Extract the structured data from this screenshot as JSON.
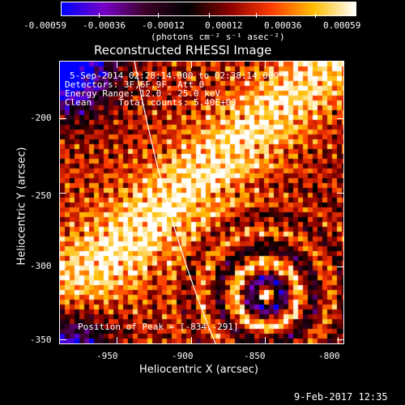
{
  "colorbar": {
    "tick_labels": [
      "-0.00059",
      "-0.00036",
      "-0.00012",
      "0.00012",
      "0.00036",
      "0.00059"
    ],
    "units": "(photons cm⁻² s⁻¹ asec⁻²)",
    "range": [
      -0.00059,
      0.00059
    ]
  },
  "plot": {
    "title": "Reconstructed RHESSI Image",
    "info": {
      "time": "5-Sep-2014 02:28:14.000 to 02:38:14.000",
      "detectors": "Detectors: 3F,6F,9F, Att 0",
      "energy": "Energy Range: 12.0 - 25.0 keV",
      "clean": "Clean     Total counts: 5.40E+03"
    },
    "peak": "Position of Peak = [-834,-291]",
    "xlabel": "Heliocentric X (arcsec)",
    "ylabel": "Heliocentric Y (arcsec)",
    "x_ticks": [
      "-950",
      "-900",
      "-850",
      "-800"
    ],
    "y_ticks": [
      "-200",
      "-250",
      "-300",
      "-350"
    ],
    "xlim": [
      -985,
      -790
    ],
    "ylim": [
      -355,
      -164
    ]
  },
  "footer": {
    "date": "9-Feb-2017 12:35"
  },
  "colors": {
    "background": "#000000",
    "foreground": "#ffffff",
    "colormap": [
      "#0000ff",
      "#7800c8",
      "#3c0028",
      "#000000",
      "#8c0000",
      "#ff3c00",
      "#ffbe00",
      "#ffffff"
    ]
  }
}
